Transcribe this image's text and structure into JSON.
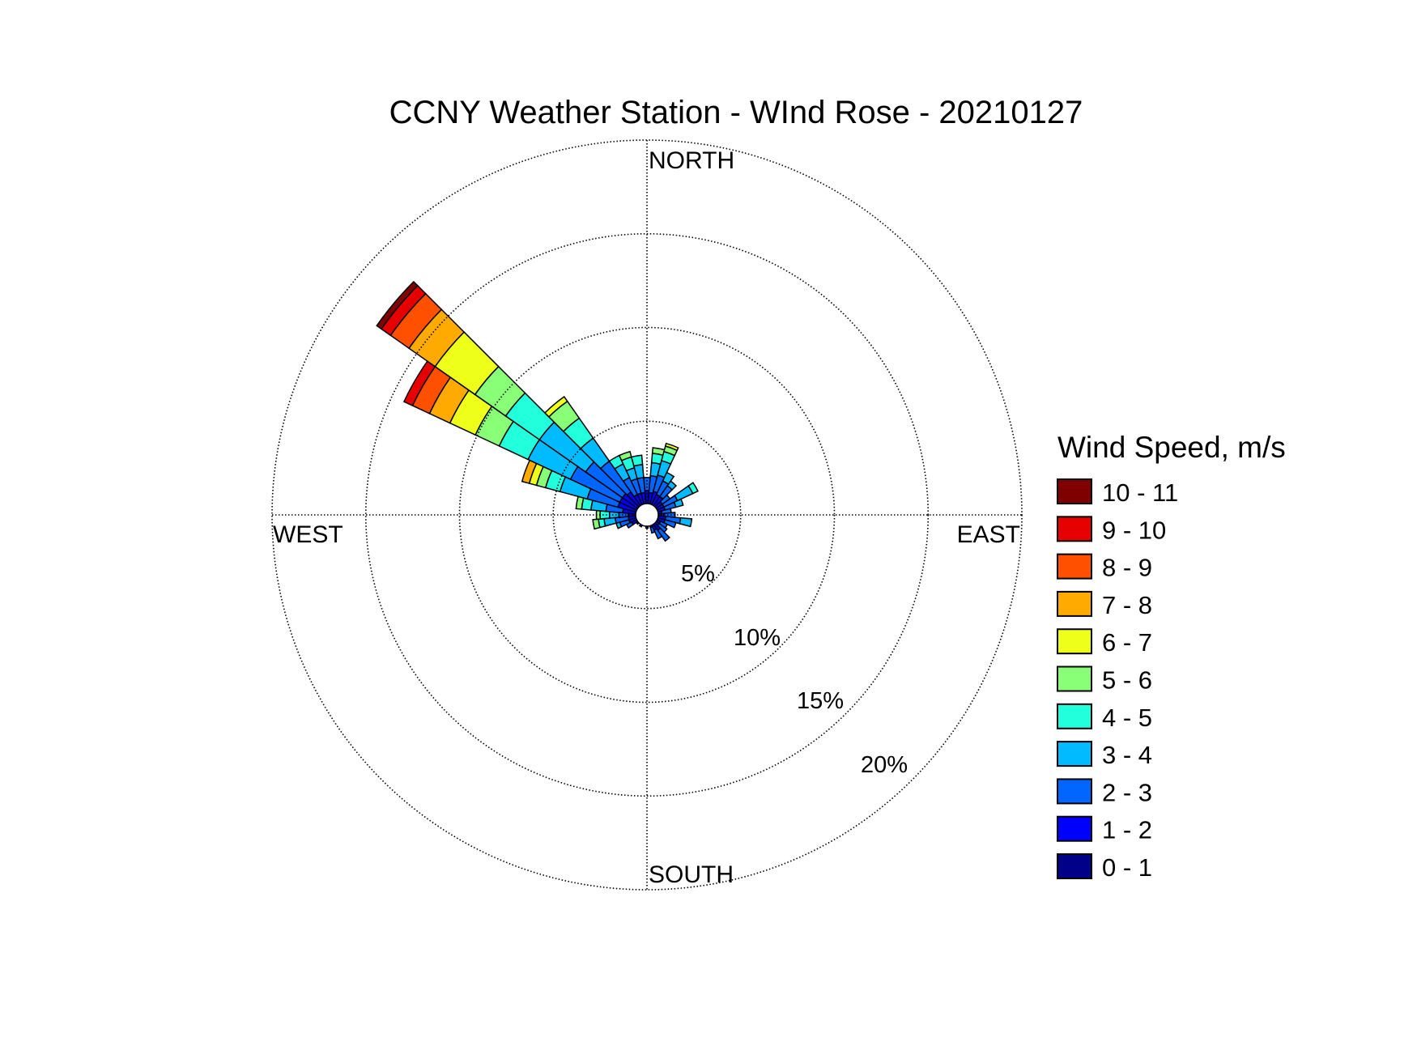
{
  "chart_data": {
    "type": "windrose",
    "title": "CCNY Weather Station - WInd Rose - 20210127",
    "directions": {
      "north": "NORTH",
      "east": "EAST",
      "south": "SOUTH",
      "west": "WEST"
    },
    "radial_unit": "%",
    "radial_ticks": [
      5,
      10,
      15,
      20
    ],
    "radial_tick_labels": [
      "5%",
      "10%",
      "15%",
      "20%"
    ],
    "radial_max": 20,
    "legend_title": "Wind Speed, m/s",
    "speed_bins": [
      {
        "label": "10 - 11",
        "color": "#800000"
      },
      {
        "label": "9 - 10",
        "color": "#e60000"
      },
      {
        "label": "8 - 9",
        "color": "#ff5000"
      },
      {
        "label": "7 - 8",
        "color": "#ffaa00"
      },
      {
        "label": "6 - 7",
        "color": "#eeff1a"
      },
      {
        "label": "5 - 6",
        "color": "#88ff77"
      },
      {
        "label": "4 - 5",
        "color": "#22ffdd"
      },
      {
        "label": "3 - 4",
        "color": "#00bbff"
      },
      {
        "label": "2 - 3",
        "color": "#0066ff"
      },
      {
        "label": "1 - 2",
        "color": "#0000ff"
      },
      {
        "label": "0 - 1",
        "color": "#000088"
      }
    ],
    "bin_width_deg": 10,
    "sectors": [
      {
        "direction_deg": 0,
        "cumulative_pct": [
          0.4,
          1.3,
          2.0
        ]
      },
      {
        "direction_deg": 10,
        "cumulative_pct": [
          0.4,
          1.2,
          2.1,
          2.8,
          3.3,
          3.6
        ]
      },
      {
        "direction_deg": 20,
        "cumulative_pct": [
          0.4,
          1.3,
          2.2,
          3.0,
          3.5,
          3.8,
          3.95
        ]
      },
      {
        "direction_deg": 30,
        "cumulative_pct": [
          0.4,
          1.2,
          2.0,
          2.5
        ]
      },
      {
        "direction_deg": 40,
        "cumulative_pct": [
          0.4,
          1.2,
          1.9,
          2.2
        ]
      },
      {
        "direction_deg": 50,
        "cumulative_pct": [
          0.4,
          1.0,
          1.5
        ]
      },
      {
        "direction_deg": 60,
        "cumulative_pct": [
          0.4,
          1.0,
          1.8,
          2.7,
          3.0
        ]
      },
      {
        "direction_deg": 70,
        "cumulative_pct": [
          0.4,
          1.0,
          1.6,
          2.0
        ]
      },
      {
        "direction_deg": 80,
        "cumulative_pct": [
          0.4,
          0.8,
          1.3
        ]
      },
      {
        "direction_deg": 90,
        "cumulative_pct": [
          0.4,
          0.9,
          1.5
        ]
      },
      {
        "direction_deg": 100,
        "cumulative_pct": [
          0.4,
          1.0,
          1.8,
          2.4
        ]
      },
      {
        "direction_deg": 110,
        "cumulative_pct": [
          0.4,
          1.0,
          1.6
        ]
      },
      {
        "direction_deg": 120,
        "cumulative_pct": [
          0.4,
          0.8,
          1.2
        ]
      },
      {
        "direction_deg": 130,
        "cumulative_pct": [
          0.4,
          0.8,
          1.3
        ]
      },
      {
        "direction_deg": 140,
        "cumulative_pct": [
          0.4,
          1.0,
          1.7
        ]
      },
      {
        "direction_deg": 150,
        "cumulative_pct": [
          0.4,
          0.9,
          1.4
        ]
      },
      {
        "direction_deg": 160,
        "cumulative_pct": [
          0.4,
          0.7,
          1.0
        ]
      },
      {
        "direction_deg": 170,
        "cumulative_pct": [
          0.4,
          0.6
        ]
      },
      {
        "direction_deg": 180,
        "cumulative_pct": [
          0.4,
          0.7
        ]
      },
      {
        "direction_deg": 190,
        "cumulative_pct": [
          0.4,
          0.6
        ]
      },
      {
        "direction_deg": 200,
        "cumulative_pct": [
          0.4,
          0.6
        ]
      },
      {
        "direction_deg": 210,
        "cumulative_pct": [
          0.4,
          0.7
        ]
      },
      {
        "direction_deg": 220,
        "cumulative_pct": [
          0.4,
          0.6
        ]
      },
      {
        "direction_deg": 230,
        "cumulative_pct": [
          0.4,
          0.7
        ]
      },
      {
        "direction_deg": 240,
        "cumulative_pct": [
          0.4,
          0.9,
          1.2
        ]
      },
      {
        "direction_deg": 250,
        "cumulative_pct": [
          0.4,
          1.0,
          1.5,
          1.7
        ]
      },
      {
        "direction_deg": 260,
        "cumulative_pct": [
          0.4,
          1.0,
          1.7,
          2.3,
          2.6,
          2.9
        ]
      },
      {
        "direction_deg": 270,
        "cumulative_pct": [
          0.4,
          1.0,
          1.5,
          2.0,
          2.5,
          2.7
        ]
      },
      {
        "direction_deg": 280,
        "cumulative_pct": [
          0.4,
          1.3,
          2.2,
          3.0,
          3.5,
          3.8
        ]
      },
      {
        "direction_deg": 290,
        "cumulative_pct": [
          0.4,
          1.6,
          3.3,
          4.8,
          5.6,
          6.1,
          6.5,
          6.9
        ]
      },
      {
        "direction_deg": 300,
        "cumulative_pct": [
          0.4,
          1.6,
          4.5,
          7.0,
          8.7,
          10.1,
          11.6,
          12.8,
          13.8,
          14.3
        ]
      },
      {
        "direction_deg": 310,
        "cumulative_pct": [
          0.4,
          1.6,
          4.0,
          7.0,
          9.2,
          11.2,
          13.8,
          15.5,
          16.7,
          17.3,
          17.6
        ]
      },
      {
        "direction_deg": 320,
        "cumulative_pct": [
          0.4,
          1.5,
          3.5,
          5.0,
          6.3,
          7.4,
          7.7
        ]
      },
      {
        "direction_deg": 330,
        "cumulative_pct": [
          0.4,
          1.2,
          2.2,
          3.0,
          3.5
        ]
      },
      {
        "direction_deg": 340,
        "cumulative_pct": [
          0.4,
          1.2,
          2.0,
          2.6,
          3.2,
          3.5
        ]
      },
      {
        "direction_deg": 350,
        "cumulative_pct": [
          0.4,
          1.2,
          2.0,
          2.7,
          3.2
        ]
      }
    ]
  }
}
